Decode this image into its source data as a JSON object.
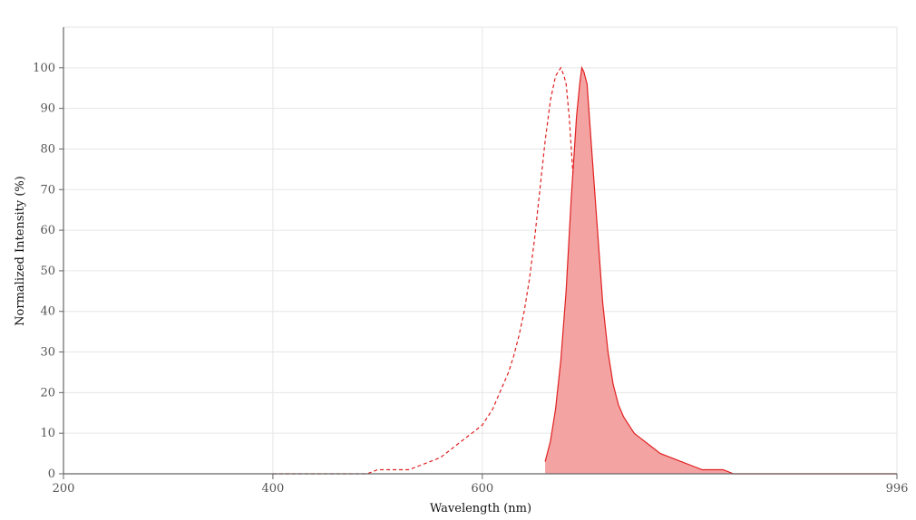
{
  "chart_data": {
    "type": "area",
    "xlabel": "Wavelength (nm)",
    "ylabel": "Normalized Intensity (%)",
    "xlim": [
      200,
      996
    ],
    "ylim": [
      0,
      110
    ],
    "x_ticks": [
      200,
      400,
      600,
      996
    ],
    "y_ticks": [
      0,
      10,
      20,
      30,
      40,
      50,
      60,
      70,
      80,
      90,
      100
    ],
    "grid": true,
    "colors": {
      "line": "#e02020",
      "fill": "#f4a3a3",
      "grid": "#e6e6e6",
      "axis": "#666666"
    },
    "series": [
      {
        "style": "dashed",
        "x": [
          400,
          430,
          460,
          490,
          500,
          530,
          540,
          550,
          560,
          570,
          580,
          590,
          600,
          605,
          610,
          615,
          620,
          625,
          630,
          635,
          640,
          645,
          650,
          655,
          660,
          665,
          670,
          675,
          678,
          680,
          683,
          686,
          690,
          695,
          700,
          705,
          710,
          715
        ],
        "y": [
          0,
          0,
          0,
          0,
          1,
          1,
          2,
          3,
          4,
          6,
          8,
          10,
          12,
          14,
          16,
          19,
          22,
          25,
          29,
          34,
          40,
          48,
          58,
          70,
          82,
          92,
          98,
          100,
          98,
          96,
          88,
          76,
          60,
          42,
          25,
          15,
          10,
          7
        ]
      },
      {
        "style": "solid-filled",
        "x": [
          660,
          665,
          670,
          675,
          680,
          685,
          690,
          693,
          695,
          697,
          700,
          705,
          710,
          715,
          720,
          725,
          730,
          735,
          740,
          745,
          750,
          760,
          770,
          780,
          790,
          800,
          810,
          820,
          830,
          840,
          850,
          860,
          880,
          900,
          996
        ],
        "y": [
          3,
          8,
          16,
          28,
          45,
          68,
          88,
          96,
          100,
          99,
          96,
          78,
          60,
          42,
          30,
          22,
          17,
          14,
          12,
          10,
          9,
          7,
          5,
          4,
          3,
          2,
          1,
          1,
          1,
          0,
          0,
          0,
          0,
          0,
          0
        ]
      }
    ]
  }
}
